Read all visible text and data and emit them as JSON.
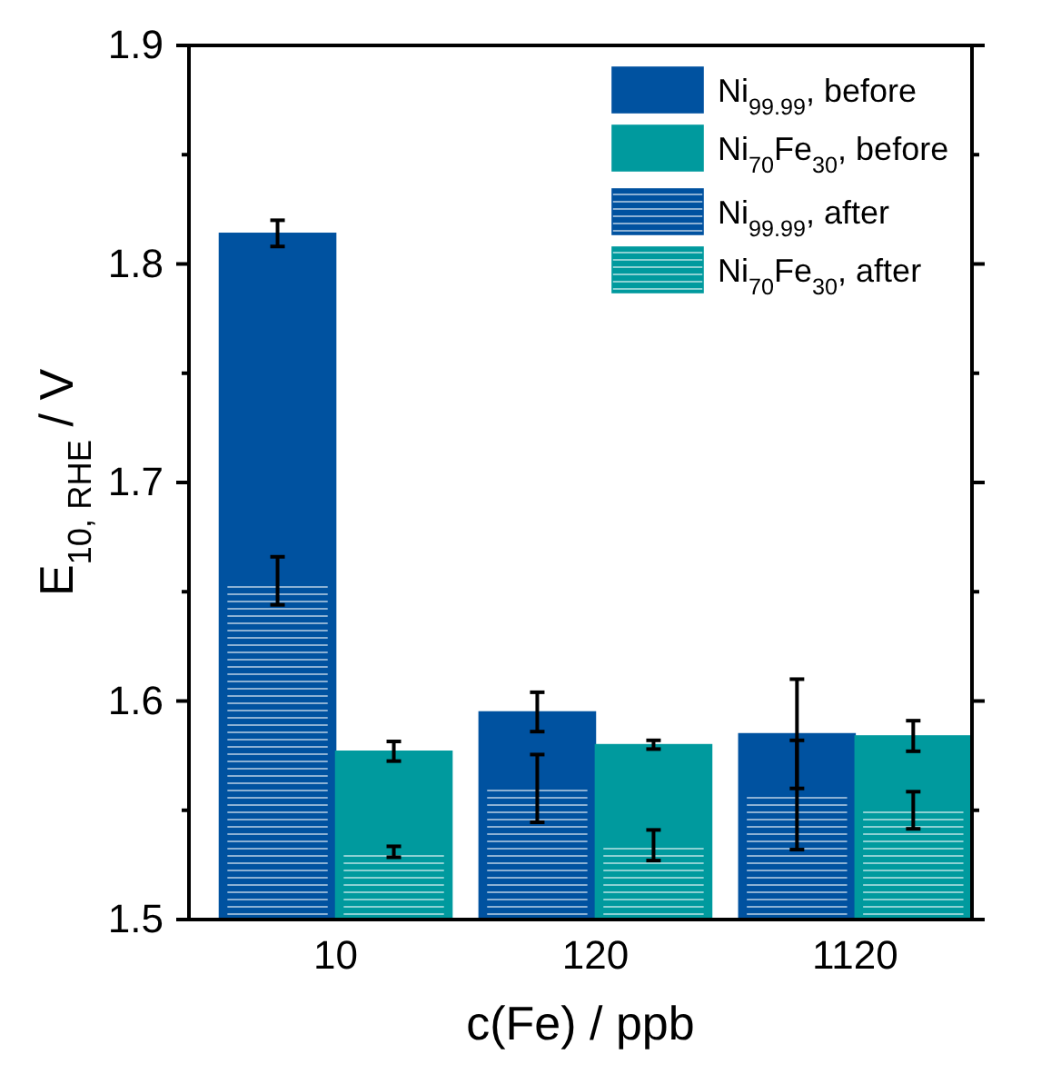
{
  "chart_data": {
    "type": "bar",
    "xlabel": "c(Fe) / ppb",
    "ylabel": "E$_{10, RHE}$ / V",
    "categories": [
      "10",
      "120",
      "1120"
    ],
    "series": [
      {
        "name": "Ni$_{99.99}$, before",
        "color": "#0052a0",
        "values": [
          1.814,
          1.595,
          1.585
        ],
        "errors": [
          0.006,
          0.009,
          0.025
        ]
      },
      {
        "name": "Ni$_{70}$Fe$_{30}$, before",
        "color": "#009a9e",
        "values": [
          1.577,
          1.58,
          1.584
        ],
        "errors": [
          0.0045,
          0.002,
          0.007
        ]
      },
      {
        "name": "Ni$_{99.99}$, after",
        "color": "#0052a0",
        "values": [
          1.655,
          1.56,
          1.557
        ],
        "errors": [
          0.011,
          0.0155,
          0.025
        ]
      },
      {
        "name": "Ni$_{70}$Fe$_{30}$, after",
        "color": "#009a9e",
        "values": [
          1.531,
          1.534,
          1.55
        ],
        "errors": [
          0.0025,
          0.007,
          0.0085
        ]
      }
    ],
    "ylim": [
      1.5,
      1.9
    ],
    "yticks": [
      1.5,
      {
        "value": 1.55,
        "label": null
      },
      1.6,
      {
        "value": 1.65,
        "label": null
      },
      1.7,
      {
        "value": 1.75,
        "label": null
      },
      1.8,
      {
        "value": 1.85,
        "label": null
      },
      1.9
    ],
    "legend": "top right"
  }
}
